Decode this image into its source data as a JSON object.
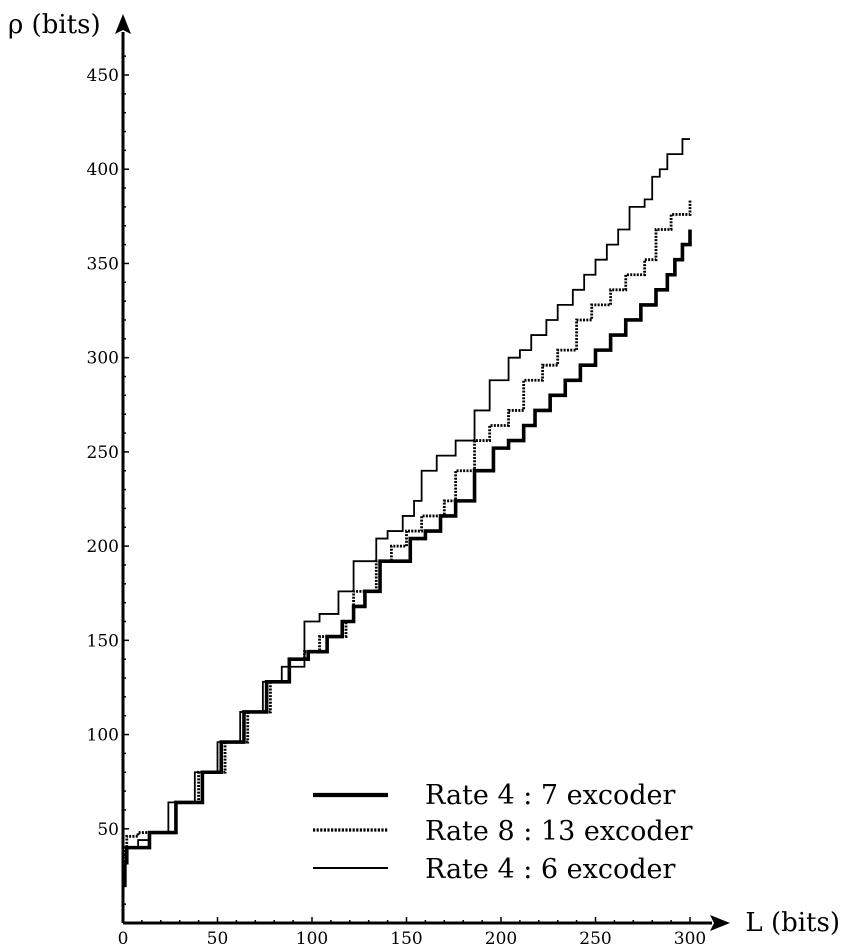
{
  "chart_data": {
    "type": "line",
    "title": "",
    "xlabel": "L (bits)",
    "ylabel": "ρ (bits)",
    "xlim": [
      0,
      300
    ],
    "ylim": [
      0,
      460
    ],
    "x_ticks": [
      "0",
      "50",
      "100",
      "150",
      "200",
      "250",
      "300"
    ],
    "y_ticks": [
      "50",
      "100",
      "150",
      "200",
      "250",
      "300",
      "350",
      "400",
      "450"
    ],
    "grid": false,
    "legend_position": "bottom-right",
    "series": [
      {
        "name": "Rate 4 : 7 excoder",
        "style": "thick-solid",
        "x": [
          0,
          1,
          2,
          4,
          14,
          28,
          42,
          52,
          64,
          76,
          88,
          98,
          108,
          116,
          122,
          128,
          136,
          144,
          152,
          160,
          168,
          176,
          186,
          196,
          204,
          212,
          218,
          226,
          234,
          242,
          250,
          258,
          266,
          274,
          282,
          288,
          292,
          296,
          300
        ],
        "y": [
          20,
          32,
          40,
          40,
          48,
          64,
          80,
          96,
          112,
          128,
          140,
          144,
          152,
          160,
          168,
          176,
          192,
          192,
          204,
          208,
          216,
          224,
          240,
          252,
          256,
          264,
          272,
          280,
          288,
          296,
          304,
          312,
          320,
          328,
          336,
          344,
          352,
          360,
          368
        ]
      },
      {
        "name": "Rate 8 : 13 excoder",
        "style": "dotted",
        "x": [
          0,
          1,
          2,
          8,
          22,
          28,
          40,
          54,
          66,
          78,
          88,
          96,
          104,
          118,
          122,
          134,
          142,
          150,
          158,
          170,
          176,
          186,
          194,
          204,
          212,
          222,
          230,
          240,
          248,
          258,
          266,
          276,
          282,
          290,
          300
        ],
        "y": [
          30,
          40,
          46,
          48,
          48,
          64,
          80,
          96,
          112,
          128,
          140,
          144,
          152,
          160,
          176,
          192,
          200,
          208,
          216,
          224,
          240,
          256,
          264,
          272,
          288,
          296,
          304,
          320,
          328,
          336,
          344,
          352,
          368,
          376,
          384
        ],
        "end_y": 384
      },
      {
        "name": "Rate 4 : 6 excoder",
        "style": "thin-solid",
        "x": [
          0,
          2,
          8,
          14,
          24,
          38,
          50,
          62,
          74,
          84,
          96,
          104,
          114,
          122,
          134,
          140,
          148,
          154,
          158,
          166,
          176,
          186,
          194,
          204,
          210,
          216,
          224,
          230,
          238,
          244,
          250,
          256,
          262,
          268,
          276,
          280,
          284,
          288,
          296,
          300
        ],
        "y": [
          36,
          40,
          44,
          48,
          64,
          80,
          96,
          112,
          128,
          136,
          160,
          164,
          176,
          192,
          204,
          208,
          216,
          224,
          240,
          248,
          256,
          272,
          288,
          300,
          304,
          312,
          320,
          328,
          336,
          344,
          352,
          360,
          368,
          380,
          384,
          396,
          400,
          408,
          416,
          416
        ]
      }
    ]
  }
}
